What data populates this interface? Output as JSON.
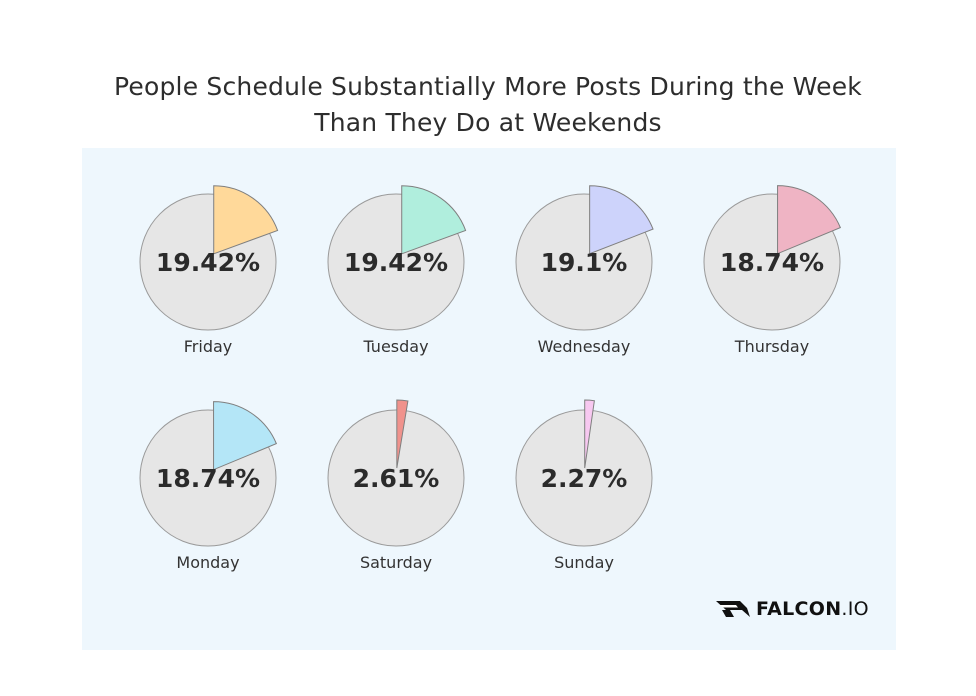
{
  "title": {
    "line1": "People Schedule Substantially More Posts During the Week",
    "line2": "Than They Do at Weekends"
  },
  "chart_data": {
    "type": "pie",
    "layout": "small-multiples",
    "title": "People Schedule Substantially More Posts During the Week Than They Do at Weekends",
    "charts": [
      {
        "label": "Friday",
        "value": 19.42,
        "value_text": "19.42%",
        "color": "#ffd99a"
      },
      {
        "label": "Tuesday",
        "value": 19.42,
        "value_text": "19.42%",
        "color": "#b0eedd"
      },
      {
        "label": "Wednesday",
        "value": 19.1,
        "value_text": "19.1%",
        "color": "#cdd3fb"
      },
      {
        "label": "Thursday",
        "value": 18.74,
        "value_text": "18.74%",
        "color": "#efb4c4"
      },
      {
        "label": "Monday",
        "value": 18.74,
        "value_text": "18.74%",
        "color": "#b4e6f7"
      },
      {
        "label": "Saturday",
        "value": 2.61,
        "value_text": "2.61%",
        "color": "#f0928c"
      },
      {
        "label": "Sunday",
        "value": 2.27,
        "value_text": "2.27%",
        "color": "#f7c8f0"
      }
    ],
    "remainder_color": "#e6e6e6",
    "background_color": "#eef7fd"
  },
  "logo": {
    "brand": "FALCON",
    "suffix": ".IO",
    "icon": "falcon-wing-icon"
  }
}
